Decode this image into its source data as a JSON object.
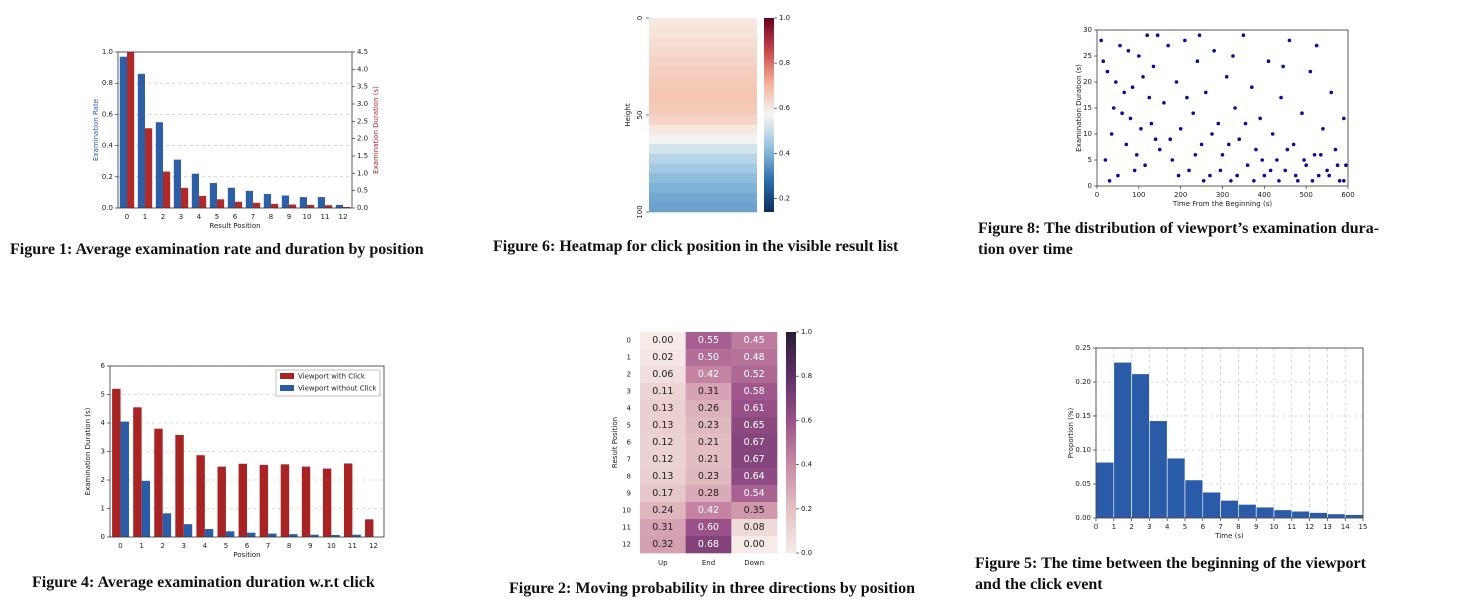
{
  "chart_data": [
    {
      "type": "bar",
      "caption": "Figure 1: Average examination rate and duration by position",
      "xlabel": "Result Position",
      "ylabel": "Examination Rate",
      "y2label": "Examination Duration (s)",
      "categories": [
        "0",
        "1",
        "2",
        "3",
        "4",
        "5",
        "6",
        "7",
        "8",
        "9",
        "10",
        "11",
        "12"
      ],
      "series": [
        {
          "color": "#2d5fa6",
          "values": [
            0.97,
            0.86,
            0.55,
            0.31,
            0.22,
            0.16,
            0.13,
            0.11,
            0.09,
            0.08,
            0.07,
            0.07,
            0.02
          ]
        },
        {
          "color": "#b02a2a",
          "axis": "y2",
          "values": [
            4.5,
            2.3,
            1.05,
            0.58,
            0.35,
            0.25,
            0.18,
            0.15,
            0.12,
            0.1,
            0.09,
            0.08,
            0.03
          ]
        }
      ],
      "ylim": [
        0,
        1
      ],
      "yticks": [
        {
          "value": 0,
          "label": "0.0"
        },
        0.2,
        0.4,
        0.6,
        0.8,
        {
          "value": 1,
          "label": "1.0"
        }
      ],
      "y2lim": [
        0,
        4.5
      ],
      "y2ticks": [
        {
          "value": 0,
          "label": "0.0"
        },
        0.5,
        {
          "value": 1,
          "label": "1.0"
        },
        1.5,
        {
          "value": 2,
          "label": "2.0"
        },
        2.5,
        {
          "value": 3,
          "label": "3.0"
        },
        3.5,
        {
          "value": 4,
          "label": "4.0"
        },
        4.5
      ],
      "grid": true
    },
    {
      "type": "heatmap",
      "caption": "Figure 6: Heatmap for click position in the visible result list",
      "ylabel": "Height",
      "ylim": [
        0,
        100
      ],
      "yticks": [
        0,
        50,
        100
      ],
      "values": [
        0.6,
        0.61,
        0.62,
        0.63,
        0.64,
        0.65,
        0.66,
        0.67,
        0.67,
        0.66,
        0.64,
        0.6,
        0.56,
        0.52,
        0.48,
        0.45,
        0.42,
        0.4,
        0.38,
        0.37
      ],
      "clim": [
        0.14,
        1.0
      ],
      "cticks": [
        0.2,
        0.4,
        0.6,
        0.8,
        {
          "value": 1,
          "label": "1.0"
        }
      ],
      "colors": [
        "#0d2d5c",
        "#2f6fad",
        "#93c2de",
        "#f7f6f5",
        "#f2b196",
        "#c9464a",
        "#67001f"
      ]
    },
    {
      "type": "scatter",
      "caption": [
        "Figure 8: The distribution of viewport’s examination dura-",
        "tion over time"
      ],
      "xlabel": "Time From the Beginning (s)",
      "ylabel": "Examination Duration (s)",
      "color": "#0a0a9e",
      "x": [
        10,
        25,
        40,
        55,
        70,
        85,
        100,
        115,
        130,
        145,
        20,
        35,
        50,
        65,
        80,
        95,
        110,
        125,
        140,
        15,
        30,
        45,
        60,
        75,
        90,
        105,
        120,
        135,
        150,
        160,
        170,
        180,
        190,
        200,
        210,
        220,
        230,
        240,
        250,
        260,
        270,
        280,
        290,
        300,
        310,
        320,
        330,
        340,
        350,
        360,
        370,
        380,
        390,
        400,
        410,
        420,
        430,
        440,
        450,
        460,
        470,
        480,
        490,
        500,
        510,
        520,
        530,
        540,
        550,
        560,
        570,
        580,
        590,
        595,
        175,
        195,
        215,
        235,
        255,
        275,
        295,
        315,
        335,
        355,
        375,
        395,
        415,
        435,
        455,
        475,
        495,
        515,
        535,
        555,
        575,
        590,
        245,
        325,
        445,
        525
      ],
      "y": [
        28,
        22,
        15,
        27,
        8,
        19,
        25,
        4,
        12,
        29,
        5,
        10,
        2,
        18,
        13,
        6,
        21,
        17,
        9,
        24,
        1,
        20,
        14,
        26,
        3,
        11,
        29,
        23,
        7,
        16,
        27,
        5,
        20,
        11,
        28,
        3,
        14,
        24,
        8,
        18,
        2,
        26,
        12,
        6,
        21,
        1,
        15,
        9,
        29,
        4,
        19,
        7,
        13,
        2,
        24,
        10,
        5,
        17,
        3,
        28,
        8,
        1,
        14,
        4,
        22,
        6,
        2,
        11,
        3,
        18,
        7,
        1,
        13,
        4,
        9,
        2,
        17,
        6,
        1,
        10,
        3,
        8,
        2,
        12,
        1,
        5,
        3,
        1,
        7,
        2,
        5,
        1,
        6,
        2,
        4,
        1,
        29,
        25,
        23,
        27
      ],
      "xlim": [
        0,
        600
      ],
      "xticks": [
        0,
        100,
        200,
        300,
        400,
        500,
        600
      ],
      "ylim": [
        0,
        30
      ],
      "yticks": [
        0,
        5,
        10,
        15,
        20,
        25,
        30
      ],
      "grid": false
    },
    {
      "type": "bar",
      "caption": "Figure 4: Average examination duration w.r.t click",
      "xlabel": "Position",
      "ylabel": "Examination Duration (s)",
      "categories": [
        "0",
        "1",
        "2",
        "3",
        "4",
        "5",
        "6",
        "7",
        "8",
        "9",
        "10",
        "11",
        "12"
      ],
      "series": [
        {
          "name": "Viewport with Click",
          "color": "#a82424",
          "values": [
            5.2,
            4.55,
            3.8,
            3.58,
            2.87,
            2.47,
            2.57,
            2.53,
            2.55,
            2.47,
            2.4,
            2.58,
            0.62
          ]
        },
        {
          "name": "Viewport without Click",
          "color": "#2a5ca8",
          "values": [
            4.05,
            1.97,
            0.83,
            0.45,
            0.28,
            0.2,
            0.15,
            0.12,
            0.1,
            0.08,
            0.07,
            0.08,
            null
          ]
        }
      ],
      "ylim": [
        0,
        6
      ],
      "yticks": [
        0,
        1,
        2,
        3,
        4,
        5,
        6
      ],
      "grid": true,
      "legend": "upper-right"
    },
    {
      "type": "heatmap",
      "caption": "Figure 2: Moving probability in three directions by position",
      "ylabel": "Result Position",
      "categories": [
        "Up",
        "End",
        "Down"
      ],
      "rows": [
        "0",
        "1",
        "2",
        "3",
        "4",
        "5",
        "6",
        "7",
        "8",
        "9",
        "10",
        "11",
        "12"
      ],
      "values": [
        [
          0,
          0.55,
          0.45
        ],
        [
          0.02,
          0.5,
          0.48
        ],
        [
          0.06,
          0.42,
          0.52
        ],
        [
          0.11,
          0.31,
          0.58
        ],
        [
          0.13,
          0.26,
          0.61
        ],
        [
          0.13,
          0.23,
          0.65
        ],
        [
          0.12,
          0.21,
          0.67
        ],
        [
          0.12,
          0.21,
          0.67
        ],
        [
          0.13,
          0.23,
          0.64
        ],
        [
          0.17,
          0.28,
          0.54
        ],
        [
          0.24,
          0.42,
          0.35
        ],
        [
          0.31,
          0.6,
          0.08
        ],
        [
          0.32,
          0.68,
          0
        ]
      ],
      "value_labels": [
        [
          "0.00",
          "0.55",
          "0.45"
        ],
        [
          "0.02",
          "0.50",
          "0.48"
        ],
        [
          "0.06",
          "0.42",
          "0.52"
        ],
        [
          "0.11",
          "0.31",
          "0.58"
        ],
        [
          "0.13",
          "0.26",
          "0.61"
        ],
        [
          "0.13",
          "0.23",
          "0.65"
        ],
        [
          "0.12",
          "0.21",
          "0.67"
        ],
        [
          "0.12",
          "0.21",
          "0.67"
        ],
        [
          "0.13",
          "0.23",
          "0.64"
        ],
        [
          "0.17",
          "0.28",
          "0.54"
        ],
        [
          "0.24",
          "0.42",
          "0.35"
        ],
        [
          "0.31",
          "0.60",
          "0.08"
        ],
        [
          "0.32",
          "0.68",
          "0.00"
        ]
      ],
      "clim": [
        0,
        1
      ],
      "cticks": [
        {
          "value": 0,
          "label": "0.0"
        },
        0.2,
        0.4,
        0.6,
        0.8,
        {
          "value": 1,
          "label": "1.0"
        }
      ],
      "colors": [
        "#f7ebe8",
        "#e3c1c5",
        "#c98aa4",
        "#9a5189",
        "#5f2f66",
        "#2b1d36"
      ]
    },
    {
      "type": "histogram",
      "caption": [
        "Figure 5: The time between the beginning of the viewport",
        "and the click event"
      ],
      "xlabel": "Time (s)",
      "ylabel": "Proportion (%)",
      "color": "#2a5ba8",
      "bins": [
        0,
        1,
        2,
        3,
        4,
        5,
        6,
        7,
        8,
        9,
        10,
        11,
        12,
        13,
        14,
        15
      ],
      "values": [
        0.082,
        0.229,
        0.212,
        0.143,
        0.088,
        0.056,
        0.038,
        0.026,
        0.02,
        0.016,
        0.012,
        0.01,
        0.008,
        0.006,
        0.005
      ],
      "xlim": [
        0,
        15
      ],
      "xticks": [
        0,
        1,
        2,
        3,
        4,
        5,
        6,
        7,
        8,
        9,
        10,
        11,
        12,
        13,
        14,
        15
      ],
      "ylim": [
        0,
        0.25
      ],
      "yticks": [
        {
          "value": 0,
          "label": "0.00"
        },
        0.05,
        {
          "value": 0.1,
          "label": "0.10"
        },
        0.15,
        {
          "value": 0.2,
          "label": "0.20"
        },
        0.25
      ],
      "grid": true
    }
  ]
}
